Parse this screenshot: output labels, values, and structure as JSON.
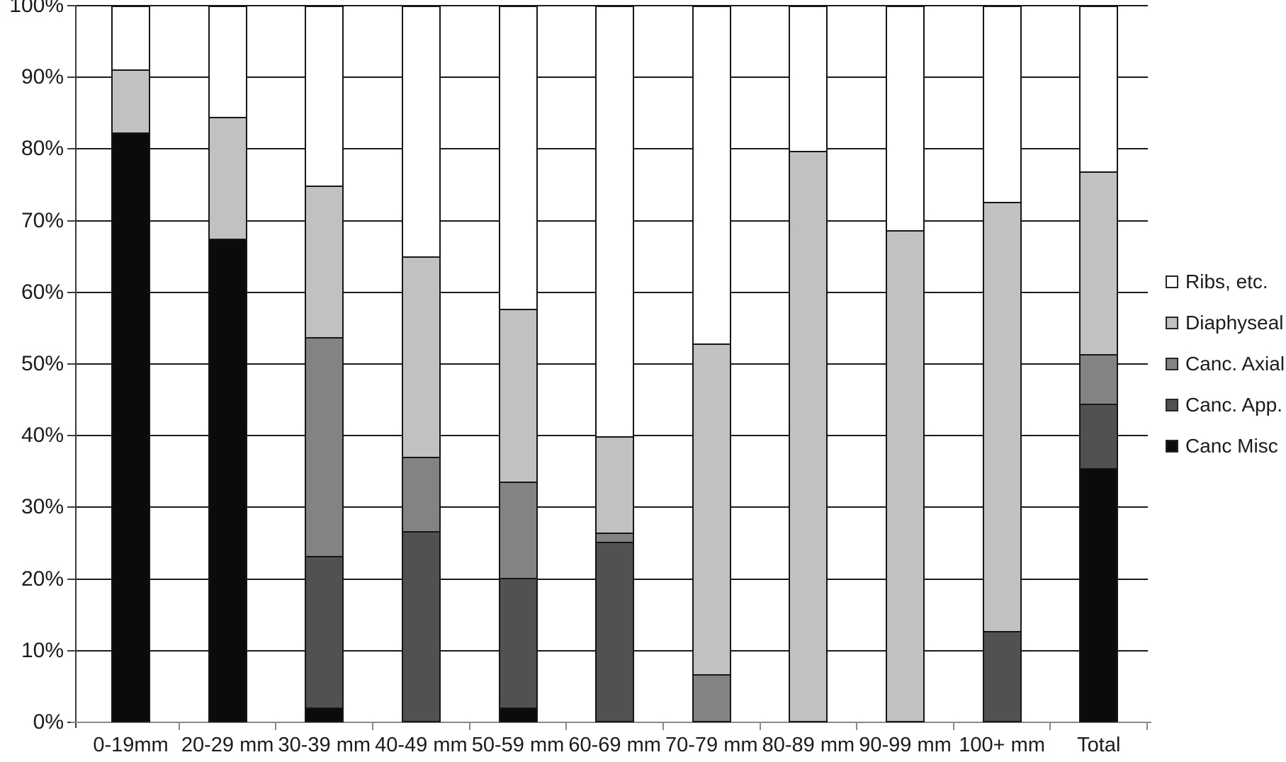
{
  "chart_data": {
    "type": "bar",
    "stacked": true,
    "units": "percent",
    "title": "",
    "xlabel": "",
    "ylabel": "",
    "ylim": [
      0,
      100
    ],
    "grid": true,
    "legend_position": "right",
    "y_ticks": [
      "0%",
      "10%",
      "20%",
      "30%",
      "40%",
      "50%",
      "60%",
      "70%",
      "80%",
      "90%",
      "100%"
    ],
    "categories": [
      "0-19mm",
      "20-29 mm",
      "30-39 mm",
      "40-49 mm",
      "50-59 mm",
      "60-69 mm",
      "70-79 mm",
      "80-89 mm",
      "90-99 mm",
      "100+ mm",
      "Total"
    ],
    "series": [
      {
        "name": "Canc Misc",
        "color": "#0b0b0b",
        "values": [
          82.2,
          67.4,
          1.7,
          0,
          1.7,
          0,
          0,
          0,
          0,
          0,
          35.2
        ]
      },
      {
        "name": "Canc. App.",
        "color": "#515151",
        "values": [
          0,
          0,
          21.2,
          26.4,
          18.1,
          24.9,
          0,
          0,
          0,
          12.4,
          9.0
        ]
      },
      {
        "name": "Canc. Axial",
        "color": "#838383",
        "values": [
          0,
          0,
          30.7,
          10.4,
          13.5,
          1.3,
          6.4,
          0,
          0,
          0,
          7.0
        ]
      },
      {
        "name": "Diaphyseal",
        "color": "#c1c1c1",
        "values": [
          8.9,
          17.0,
          21.2,
          28.1,
          24.2,
          13.5,
          46.3,
          79.7,
          68.6,
          60.1,
          25.6
        ]
      },
      {
        "name": "Ribs, etc.",
        "color": "#ffffff",
        "values": [
          8.9,
          15.6,
          25.2,
          35.1,
          42.5,
          60.3,
          47.3,
          20.3,
          31.4,
          27.5,
          23.2
        ]
      }
    ],
    "legend_order_top_to_bottom": [
      "Ribs, etc.",
      "Diaphyseal",
      "Canc. Axial",
      "Canc. App.",
      "Canc Misc"
    ]
  },
  "colors": {
    "background": "#ffffff",
    "gridline": "#1b1b1b",
    "axis": "#8a8a8a",
    "text": "#1c1c1c"
  }
}
